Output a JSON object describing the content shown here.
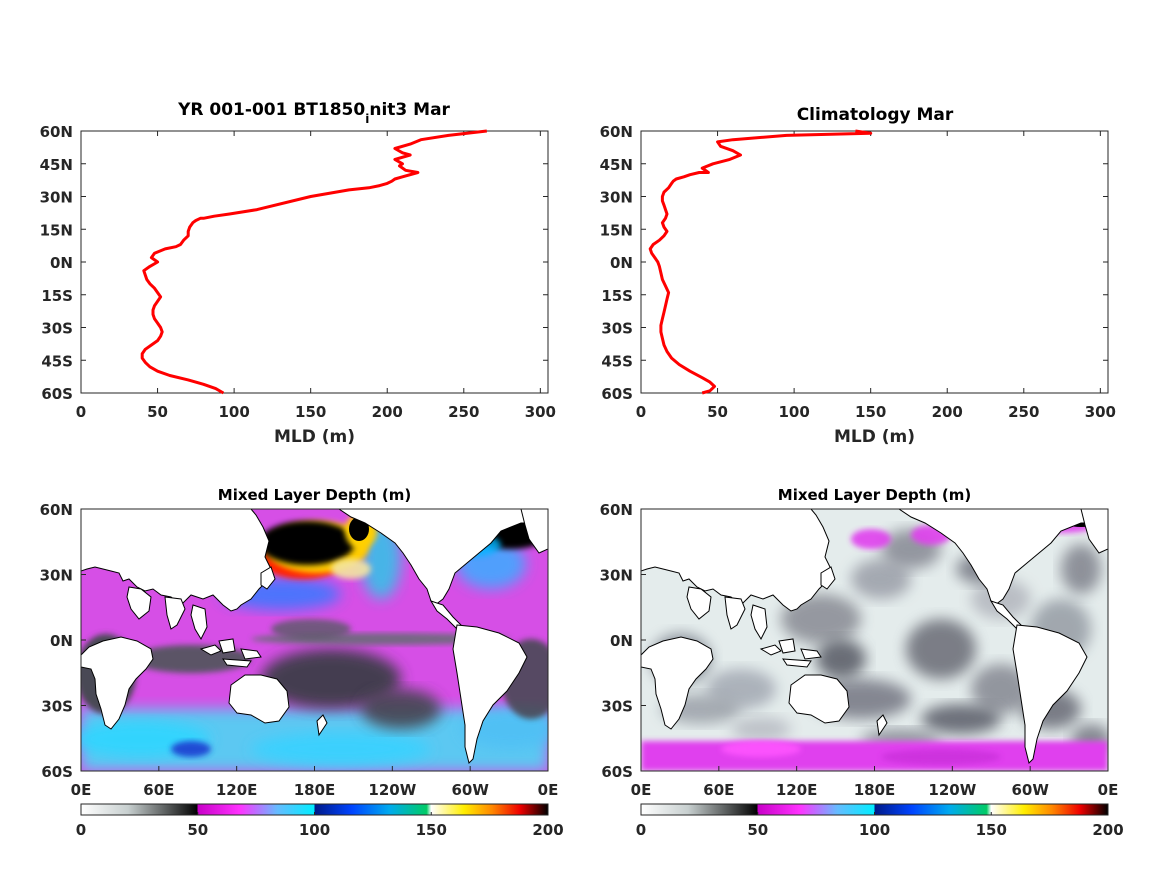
{
  "colors": {
    "profile_line": "#ff0000",
    "axis": "#262626",
    "land": "#ffffff",
    "coast": "#000000"
  },
  "chart_data": [
    {
      "type": "line",
      "title_main": "YR 001-001 BT1850",
      "title_sub": "i",
      "title_tail": "nit3 Mar",
      "xlabel": "MLD (m)",
      "xlim": [
        0,
        305
      ],
      "ylim": [
        -60,
        60
      ],
      "xticks": [
        "0",
        "50",
        "100",
        "150",
        "200",
        "250",
        "300"
      ],
      "yticks": [
        "60N",
        "45N",
        "30N",
        "15N",
        "0N",
        "15S",
        "30S",
        "45S",
        "60S"
      ],
      "series": [
        {
          "x": [
            93,
            88,
            80,
            70,
            58,
            50,
            45,
            42,
            40,
            40,
            42,
            46,
            50,
            52,
            53,
            52,
            50,
            48,
            47,
            47,
            48,
            50,
            52,
            50,
            48,
            45,
            43,
            42,
            41,
            45,
            50,
            46,
            48,
            55,
            62,
            65,
            67,
            70,
            70,
            71,
            73,
            75,
            78,
            80,
            87,
            97,
            115,
            150,
            175,
            188,
            195,
            200,
            203,
            205,
            210,
            220,
            212,
            208,
            210,
            205,
            215,
            210,
            205,
            215,
            222,
            240,
            265
          ],
          "y": [
            -60,
            -58,
            -56,
            -54,
            -52,
            -50,
            -48,
            -46,
            -44,
            -42,
            -40,
            -38,
            -36,
            -34,
            -32,
            -30,
            -28,
            -26,
            -24,
            -22,
            -20,
            -18,
            -16,
            -14,
            -12,
            -10,
            -8,
            -6,
            -4,
            -2,
            0,
            2,
            4,
            6,
            7,
            8,
            10,
            12,
            14,
            16,
            18,
            19,
            20,
            20,
            21,
            22,
            24,
            30,
            33,
            34,
            35,
            36,
            37,
            38,
            39,
            41,
            42,
            44,
            45,
            47,
            49,
            50,
            52,
            54,
            56,
            58,
            60
          ]
        }
      ]
    },
    {
      "type": "line",
      "title": "Climatology Mar",
      "xlabel": "MLD (m)",
      "xlim": [
        0,
        305
      ],
      "ylim": [
        -60,
        60
      ],
      "xticks": [
        "0",
        "50",
        "100",
        "150",
        "200",
        "250",
        "300"
      ],
      "yticks": [
        "60N",
        "45N",
        "30N",
        "15N",
        "0N",
        "15S",
        "30S",
        "45S",
        "60S"
      ],
      "series": [
        {
          "x": [
            40,
            45,
            48,
            45,
            40,
            32,
            25,
            20,
            17,
            15,
            14,
            13,
            13,
            14,
            15,
            16,
            17,
            18,
            16,
            14,
            13,
            12,
            11,
            10,
            9,
            8,
            7,
            6,
            8,
            12,
            15,
            17,
            15,
            14,
            16,
            17,
            16,
            15,
            14,
            14,
            15,
            18,
            20,
            21,
            23,
            28,
            32,
            38,
            44,
            40,
            47,
            58,
            65,
            60,
            52,
            50,
            60,
            95,
            150,
            140
          ],
          "y": [
            -60,
            -59,
            -57,
            -55,
            -53,
            -50,
            -47,
            -44,
            -41,
            -38,
            -35,
            -32,
            -29,
            -26,
            -23,
            -20,
            -17,
            -14,
            -11,
            -8,
            -5,
            -2,
            0,
            1,
            2,
            3,
            4,
            6,
            8,
            10,
            12,
            14,
            16,
            18,
            20,
            22,
            24,
            26,
            28,
            30,
            32,
            34,
            36,
            37,
            38,
            39,
            40,
            41,
            41,
            43,
            45,
            47,
            49,
            51,
            53,
            55,
            56,
            58,
            59,
            60
          ]
        }
      ]
    },
    {
      "type": "heatmap",
      "title": "Mixed Layer Depth (m)",
      "xticks": [
        "0E",
        "60E",
        "120E",
        "180E",
        "120W",
        "60W",
        "0E"
      ],
      "yticks": [
        "60N",
        "30N",
        "0N",
        "30S",
        "60S"
      ],
      "colorbar": {
        "ticks": [
          "0",
          "50",
          "100",
          "150",
          "200"
        ],
        "range": [
          0,
          200
        ]
      }
    },
    {
      "type": "heatmap",
      "title": "Mixed Layer Depth (m)",
      "xticks": [
        "0E",
        "60E",
        "120E",
        "180E",
        "120W",
        "60W",
        "0E"
      ],
      "yticks": [
        "60N",
        "30N",
        "0N",
        "30S",
        "60S"
      ],
      "colorbar": {
        "ticks": [
          "0",
          "50",
          "100",
          "150",
          "200"
        ],
        "range": [
          0,
          200
        ]
      }
    }
  ]
}
